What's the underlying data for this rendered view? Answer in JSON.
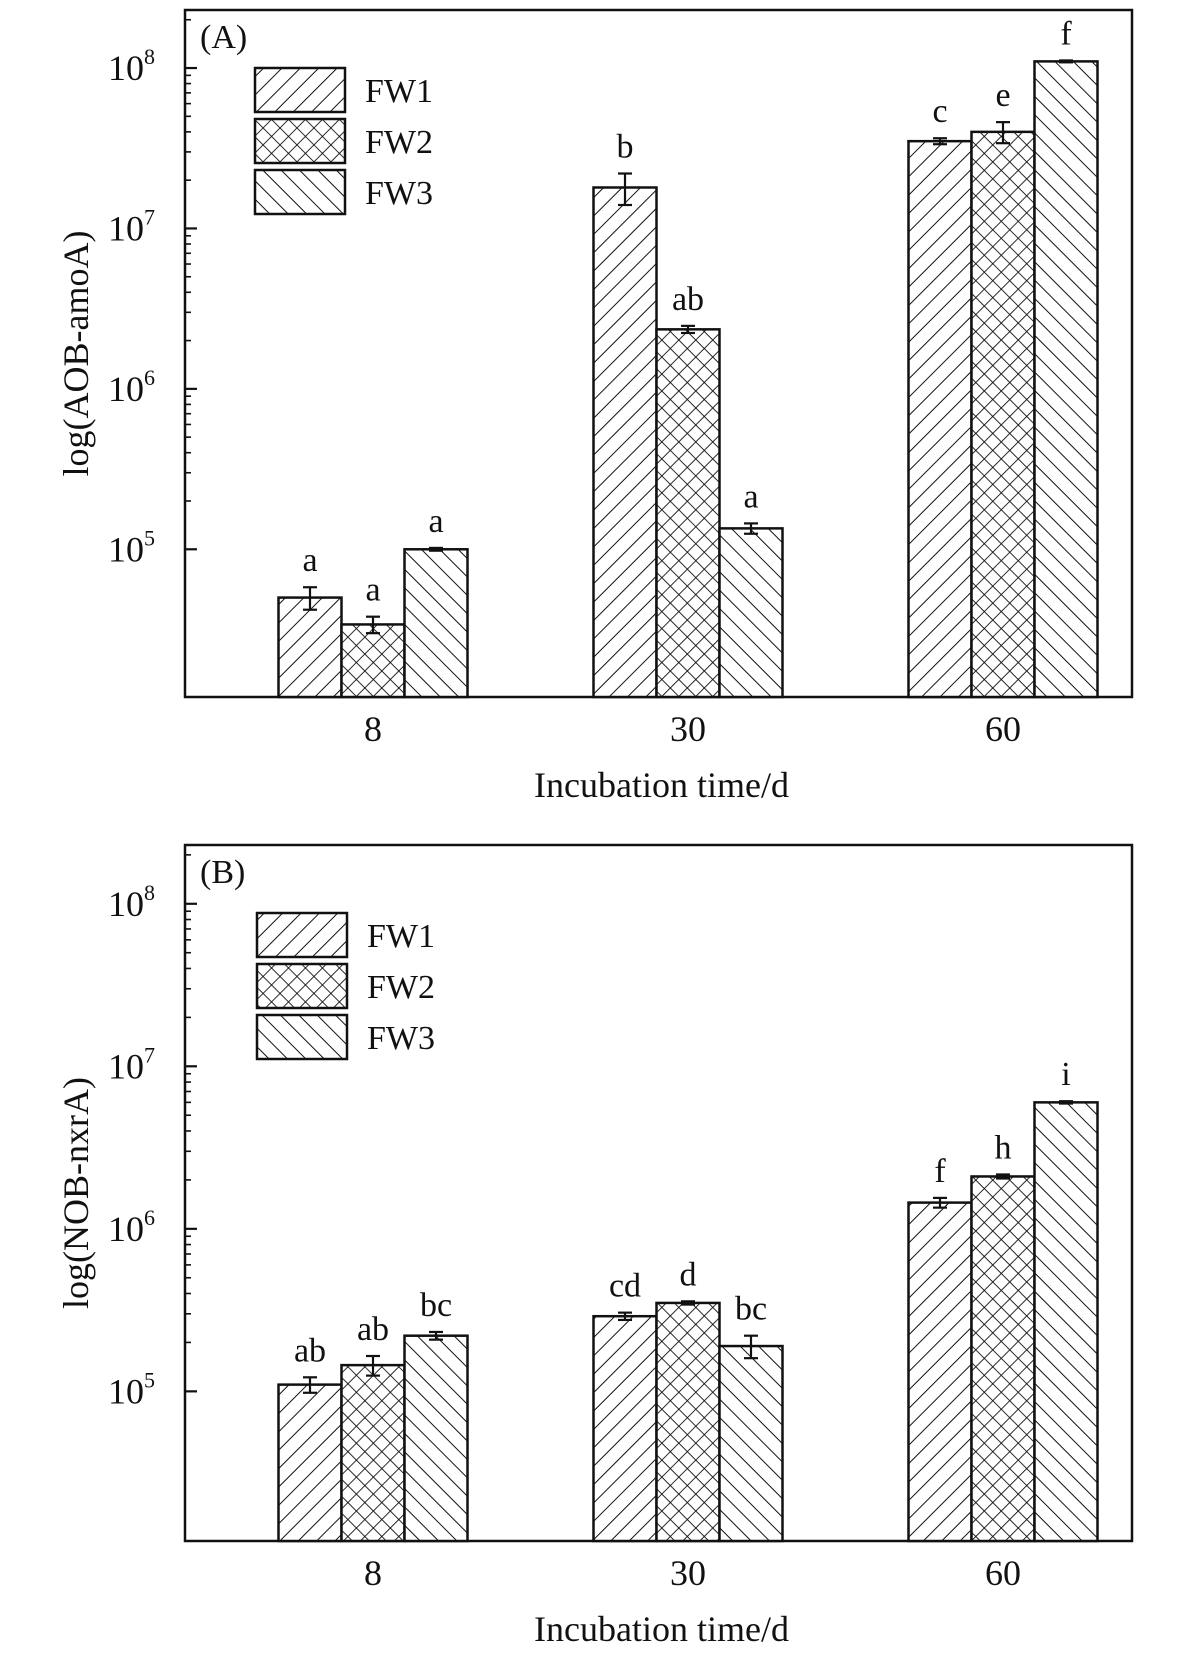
{
  "colors": {
    "ink": "#111111",
    "background": "#ffffff"
  },
  "chart_data": [
    {
      "type": "bar",
      "panel_label": "(A)",
      "title": "",
      "xlabel": "Incubation time/d",
      "ylabel": "log(AOB-amoA)",
      "y_scale": "log",
      "ylim": [
        12000,
        230000000
      ],
      "y_ticks": [
        {
          "value": 100000,
          "base": "10",
          "exp": "5"
        },
        {
          "value": 1000000,
          "base": "10",
          "exp": "6"
        },
        {
          "value": 10000000,
          "base": "10",
          "exp": "7"
        },
        {
          "value": 100000000,
          "base": "10",
          "exp": "8"
        }
      ],
      "categories": [
        "8",
        "30",
        "60"
      ],
      "legend_position": "top-left",
      "series": [
        {
          "name": "FW1",
          "pattern": "hatch-forward",
          "values": [
            50000,
            18000000,
            35000000
          ],
          "errors": [
            8000,
            4000000,
            1500000
          ],
          "labels": [
            "a",
            "b",
            "c"
          ]
        },
        {
          "name": "FW2",
          "pattern": "crosshatch",
          "values": [
            34000,
            2350000,
            40000000
          ],
          "errors": [
            4000,
            120000,
            6000000
          ],
          "labels": [
            "a",
            "ab",
            "e"
          ]
        },
        {
          "name": "FW3",
          "pattern": "hatch-backward",
          "values": [
            100000,
            135000,
            110000000
          ],
          "errors": [
            2000,
            10000,
            1500000
          ],
          "labels": [
            "a",
            "a",
            "f"
          ]
        }
      ]
    },
    {
      "type": "bar",
      "panel_label": "(B)",
      "title": "",
      "xlabel": "Incubation time/d",
      "ylabel": "log(NOB-nxrA)",
      "y_scale": "log",
      "ylim": [
        12000,
        230000000
      ],
      "y_ticks": [
        {
          "value": 100000,
          "base": "10",
          "exp": "5"
        },
        {
          "value": 1000000,
          "base": "10",
          "exp": "6"
        },
        {
          "value": 10000000,
          "base": "10",
          "exp": "7"
        },
        {
          "value": 100000000,
          "base": "10",
          "exp": "8"
        }
      ],
      "categories": [
        "8",
        "30",
        "60"
      ],
      "legend_position": "top-left",
      "series": [
        {
          "name": "FW1",
          "pattern": "hatch-forward",
          "values": [
            110000,
            290000,
            1450000
          ],
          "errors": [
            12000,
            15000,
            100000
          ],
          "labels": [
            "ab",
            "cd",
            "f"
          ]
        },
        {
          "name": "FW2",
          "pattern": "crosshatch",
          "values": [
            145000,
            350000,
            2100000
          ],
          "errors": [
            20000,
            8000,
            60000
          ],
          "labels": [
            "ab",
            "d",
            "h"
          ]
        },
        {
          "name": "FW3",
          "pattern": "hatch-backward",
          "values": [
            220000,
            190000,
            6000000
          ],
          "errors": [
            12000,
            30000,
            100000
          ],
          "labels": [
            "bc",
            "bc",
            "i"
          ]
        }
      ]
    }
  ]
}
